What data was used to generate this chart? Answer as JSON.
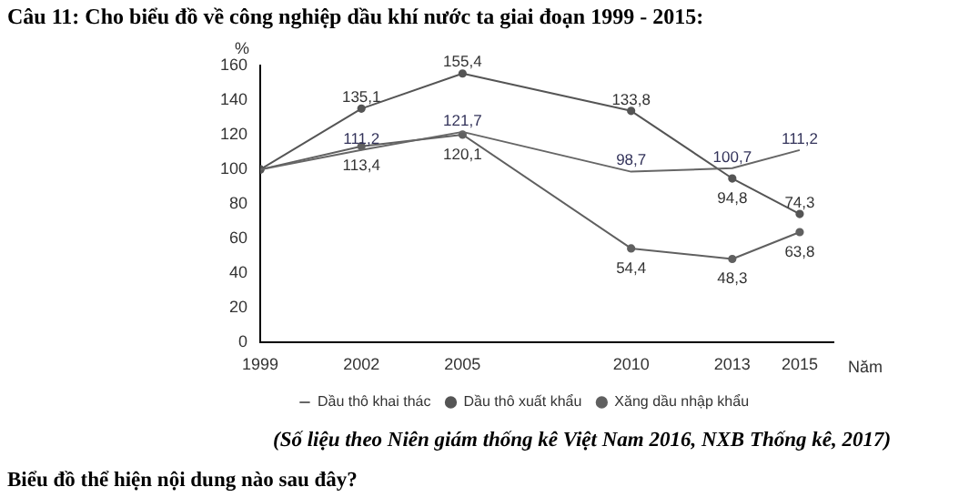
{
  "chart_data": {
    "type": "line",
    "title": "Câu 11: Cho biểu đồ về công nghiệp dầu khí nước ta giai đoạn 1999 - 2015:",
    "ylabel": "%",
    "xlabel": "Năm",
    "annotations": [
      "(Số liệu theo Niên giám thống kê Việt Nam 2016, NXB Thống kê, 2017)",
      "Biểu đồ thể hiện nội dung nào sau đây?"
    ],
    "x": [
      1999,
      2002,
      2005,
      2010,
      2013,
      2015
    ],
    "series": [
      {
        "name": "Dầu thô khai thác",
        "color": "#666666",
        "marker": "none",
        "values": [
          100,
          111.2,
          121.7,
          98.7,
          100.7,
          111.2
        ],
        "value_labels": [
          null,
          "111,2",
          "121,7",
          "98,7",
          "100,7",
          "111,2"
        ]
      },
      {
        "name": "Dầu thô xuất khẩu",
        "color": "#555555",
        "marker": "circle",
        "values": [
          100,
          135.1,
          155.4,
          133.8,
          94.8,
          74.3
        ],
        "value_labels": [
          null,
          "135,1",
          "155,4",
          "133,8",
          "94,8",
          "74,3"
        ]
      },
      {
        "name": "Xăng dầu nhập khẩu",
        "color": "#606060",
        "marker": "circle",
        "values": [
          100,
          113.4,
          120.1,
          54.4,
          48.3,
          63.8
        ],
        "value_labels": [
          null,
          "113,4",
          "120,1",
          "54,4",
          "48,3",
          "63,8"
        ]
      }
    ],
    "xlim": [
      1999,
      2016
    ],
    "xticks": [
      1999,
      2002,
      2005,
      2010,
      2013,
      2015
    ],
    "ylim": [
      0,
      160
    ],
    "yticks": [
      0,
      20,
      40,
      60,
      80,
      100,
      120,
      140,
      160
    ],
    "grid": false,
    "legend": "bottom"
  }
}
